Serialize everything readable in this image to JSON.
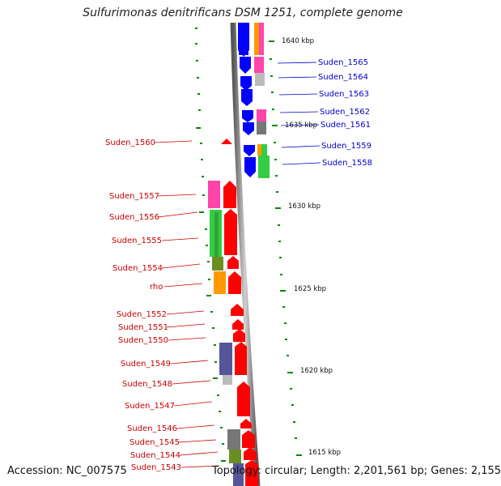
{
  "title": "Sulfurimonas denitrificans DSM 1251, complete genome",
  "footer": {
    "accession": "Accession: NC_007575",
    "topology": "Topology: circular; Length: 2,201,561 bp; Genes: 2,155"
  },
  "kbp_marks": [
    "1640 kbp",
    "1635 kbp",
    "1630 kbp",
    "1625 kbp",
    "1620 kbp",
    "1615 kbp"
  ],
  "left_genes": [
    "Suden_1560",
    "Suden_1557",
    "Suden_1556",
    "Suden_1555",
    "Suden_1554",
    "rho",
    "Suden_1552",
    "Suden_1551",
    "Suden_1550",
    "Suden_1549",
    "Suden_1548",
    "Suden_1547",
    "Suden_1546",
    "Suden_1545",
    "Suden_1544",
    "Suden_1543"
  ],
  "right_genes": [
    "Suden_1565",
    "Suden_1564",
    "Suden_1563",
    "Suden_1562",
    "Suden_1561",
    "Suden_1559",
    "Suden_1558"
  ],
  "colors": {
    "reverse_strand": "#ff0000",
    "forward_strand": "#0000ff",
    "backbone": "#888888",
    "tick": "#008800",
    "cog_pink": "#ff44aa",
    "cog_green": "#33cc44",
    "cog_olive": "#6b8e23",
    "cog_orange": "#ff9900",
    "cog_purple": "#55559a",
    "cog_gray": "#777777",
    "cog_lightgray": "#bbbbbb"
  }
}
